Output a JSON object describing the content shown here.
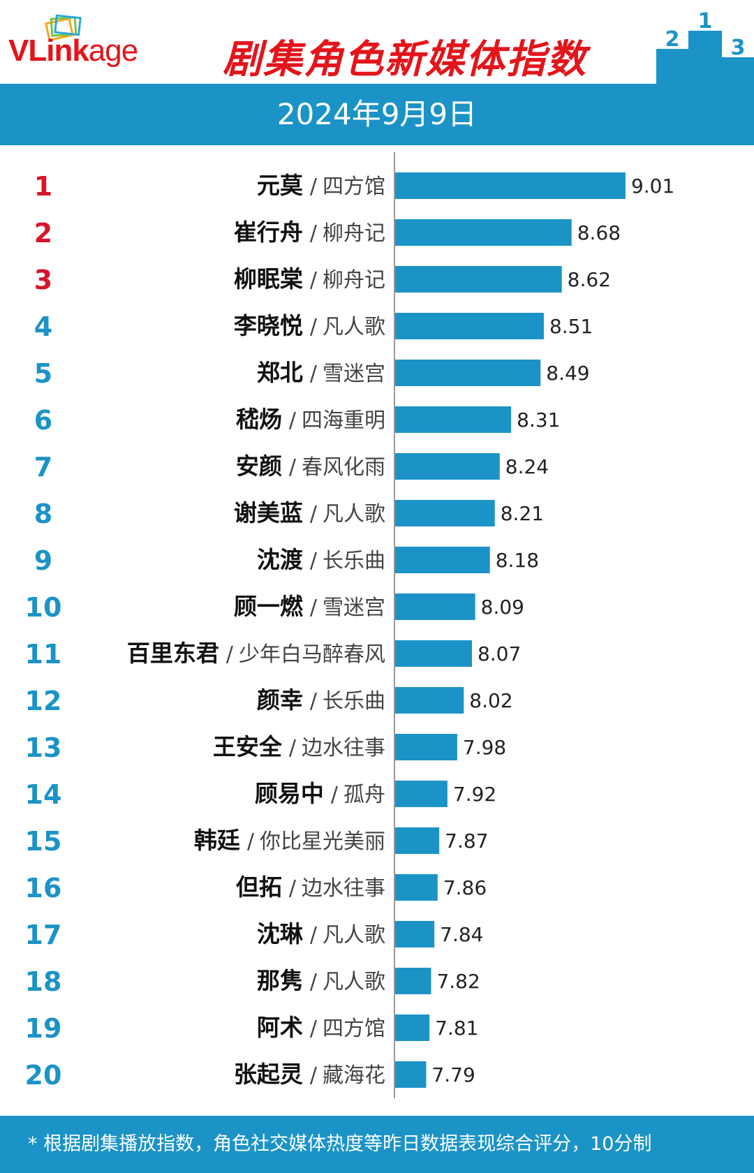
{
  "header": {
    "logo_prefix": "VLink",
    "logo_suffix": "age",
    "title": "剧集角色新媒体指数",
    "podium_numbers": [
      "2",
      "1",
      "3"
    ]
  },
  "date": "2024年9月9日",
  "footer": {
    "note": "* 根据剧集播放指数，角色社交媒体热度等昨日数据表现综合评分，10分制"
  },
  "colors": {
    "accent_blue": "#1b93c7",
    "bar_blue": "#1b93c7",
    "title_red": "#e4141b",
    "top3_rank_red": "#d6162a",
    "rank_blue": "#1b93c7"
  },
  "chart_data": {
    "type": "bar",
    "orientation": "horizontal",
    "title": "剧集角色新媒体指数",
    "xlabel": "",
    "ylabel": "",
    "ranks": [
      "1",
      "2",
      "3",
      "4",
      "5",
      "6",
      "7",
      "8",
      "9",
      "10",
      "11",
      "12",
      "13",
      "14",
      "15",
      "16",
      "17",
      "18",
      "19",
      "20"
    ],
    "characters": [
      "元莫",
      "崔行舟",
      "柳眠棠",
      "李晓悦",
      "郑北",
      "嵇炀",
      "安颜",
      "谢美蓝",
      "沈渡",
      "顾一燃",
      "百里东君",
      "颜幸",
      "王安全",
      "顾易中",
      "韩廷",
      "但拓",
      "沈琳",
      "那隽",
      "阿术",
      "张起灵"
    ],
    "dramas": [
      "四方馆",
      "柳舟记",
      "柳舟记",
      "凡人歌",
      "雪迷宫",
      "四海重明",
      "春风化雨",
      "凡人歌",
      "长乐曲",
      "雪迷宫",
      "少年白马醉春风",
      "长乐曲",
      "边水往事",
      "孤舟",
      "你比星光美丽",
      "边水往事",
      "凡人歌",
      "凡人歌",
      "四方馆",
      "藏海花"
    ],
    "values": [
      9.01,
      8.68,
      8.62,
      8.51,
      8.49,
      8.31,
      8.24,
      8.21,
      8.18,
      8.09,
      8.07,
      8.02,
      7.98,
      7.92,
      7.87,
      7.86,
      7.84,
      7.82,
      7.81,
      7.79
    ],
    "value_labels": [
      "9.01",
      "8.68",
      "8.62",
      "8.51",
      "8.49",
      "8.31",
      "8.24",
      "8.21",
      "8.18",
      "8.09",
      "8.07",
      "8.02",
      "7.98",
      "7.92",
      "7.87",
      "7.86",
      "7.84",
      "7.82",
      "7.81",
      "7.79"
    ],
    "xlim": [
      7.5,
      9.2
    ],
    "grid": false,
    "legend": "none"
  }
}
